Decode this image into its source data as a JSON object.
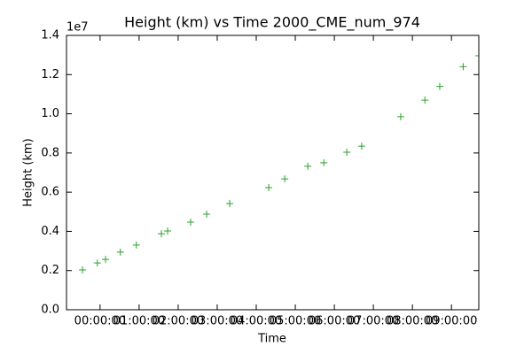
{
  "chart_data": {
    "type": "scatter",
    "title": "Height (km) vs Time 2000_CME_num_974",
    "x_label": "Time",
    "y_label": "Height (km)",
    "y_offset_text": "1e7",
    "series": [
      {
        "color": "#2ca02c",
        "marker": "+",
        "x": [
          -0.45,
          -0.07,
          0.14,
          0.52,
          0.93,
          1.57,
          1.73,
          2.32,
          2.73,
          3.32,
          4.32,
          4.73,
          5.32,
          5.73,
          6.32,
          6.7,
          7.7,
          8.32,
          8.7,
          9.3,
          9.7
        ],
        "values": [
          2030000,
          2390000,
          2570000,
          2940000,
          3300000,
          3880000,
          4020000,
          4470000,
          4880000,
          5420000,
          6230000,
          6680000,
          7320000,
          7500000,
          8040000,
          8350000,
          9850000,
          10700000,
          11400000,
          12400000,
          12960000
        ]
      }
    ],
    "xlim": [
      -0.86,
      9.7
    ],
    "xticks": [
      {
        "value": 0,
        "label": "00:00:00"
      },
      {
        "value": 1,
        "label": "01:00:00"
      },
      {
        "value": 2,
        "label": "02:00:00"
      },
      {
        "value": 3,
        "label": "03:00:00"
      },
      {
        "value": 4,
        "label": "04:00:00"
      },
      {
        "value": 5,
        "label": "05:00:00"
      },
      {
        "value": 6,
        "label": "06:00:00"
      },
      {
        "value": 7,
        "label": "07:00:00"
      },
      {
        "value": 8,
        "label": "08:00:00"
      },
      {
        "value": 9,
        "label": "09:00:00"
      }
    ],
    "ylim": [
      0,
      14000000
    ],
    "yticks": [
      {
        "value": 0,
        "label": "0.0"
      },
      {
        "value": 2000000,
        "label": "0.2"
      },
      {
        "value": 4000000,
        "label": "0.4"
      },
      {
        "value": 6000000,
        "label": "0.6"
      },
      {
        "value": 8000000,
        "label": "0.8"
      },
      {
        "value": 10000000,
        "label": "1.0"
      },
      {
        "value": 12000000,
        "label": "1.2"
      },
      {
        "value": 14000000,
        "label": "1.4"
      }
    ]
  }
}
